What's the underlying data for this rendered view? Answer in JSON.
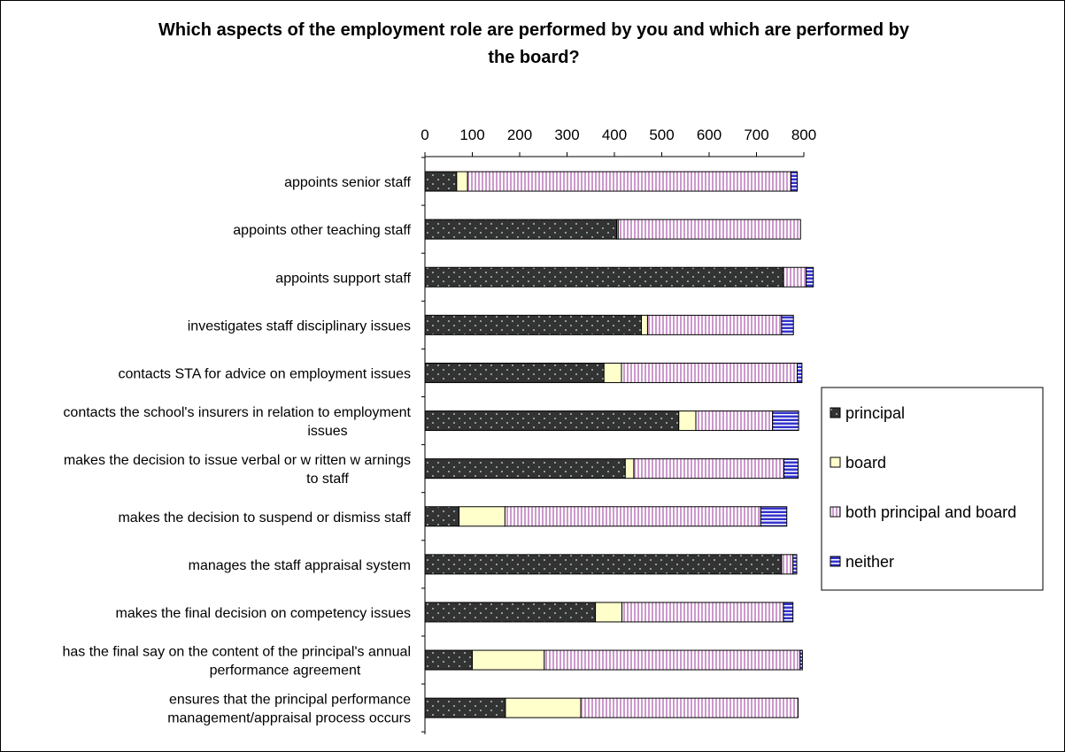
{
  "chart_data": {
    "type": "bar",
    "orientation": "horizontal",
    "stacked": true,
    "title": "Which aspects of the employment role are performed by you and which are performed by the board?",
    "xlabel": "",
    "ylabel": "",
    "xlim": [
      0,
      800
    ],
    "x_ticks": [
      "0",
      "100",
      "200",
      "300",
      "400",
      "500",
      "600",
      "700",
      "800"
    ],
    "grid": false,
    "legend_position": "right",
    "categories": [
      "appoints senior staff",
      "appoints other teaching staff",
      "appoints support staff",
      "investigates staff disciplinary issues",
      "contacts STA for advice on employment issues",
      "contacts the school's insurers in relation to employment issues",
      "makes the decision to issue verbal or w ritten w arnings to staff",
      "makes the decision to suspend or dismiss staff",
      "manages the staff appraisal system",
      "makes the final decision on competency issues",
      "has the final say on the content of the principal's annual performance agreement",
      "ensures that the principal performance management/appraisal process occurs"
    ],
    "category_lines": [
      [
        "appoints senior staff"
      ],
      [
        "appoints other teaching staff"
      ],
      [
        "appoints support staff"
      ],
      [
        "investigates staff disciplinary issues"
      ],
      [
        "contacts STA for advice on employment issues"
      ],
      [
        "contacts the school's insurers in relation to employment",
        "issues"
      ],
      [
        "makes the decision to issue verbal or w ritten w arnings",
        "to staff"
      ],
      [
        "makes the decision to suspend or dismiss staff"
      ],
      [
        "manages the staff appraisal system"
      ],
      [
        "makes the final decision on competency issues"
      ],
      [
        "has the final say on the content of the principal's annual",
        "performance agreement"
      ],
      [
        "ensures that the principal performance",
        "management/appraisal process occurs"
      ]
    ],
    "series": [
      {
        "name": "principal",
        "color": "#333333",
        "pattern": "dots",
        "values": [
          67,
          405,
          757,
          457,
          378,
          536,
          423,
          72,
          753,
          360,
          100,
          170
        ]
      },
      {
        "name": "board",
        "color": "#ffffcc",
        "pattern": "none",
        "values": [
          23,
          3,
          0,
          13,
          37,
          36,
          18,
          97,
          0,
          56,
          152,
          159
        ]
      },
      {
        "name": "both principal and board",
        "color": "#cc99cc",
        "pattern": "vertical-lines",
        "values": [
          683,
          385,
          48,
          283,
          371,
          162,
          317,
          540,
          24,
          341,
          540,
          459
        ]
      },
      {
        "name": "neither",
        "color": "#3333cc",
        "pattern": "horizontal-lines",
        "values": [
          13,
          0,
          15,
          25,
          10,
          55,
          30,
          55,
          8,
          20,
          5,
          0
        ]
      }
    ]
  }
}
